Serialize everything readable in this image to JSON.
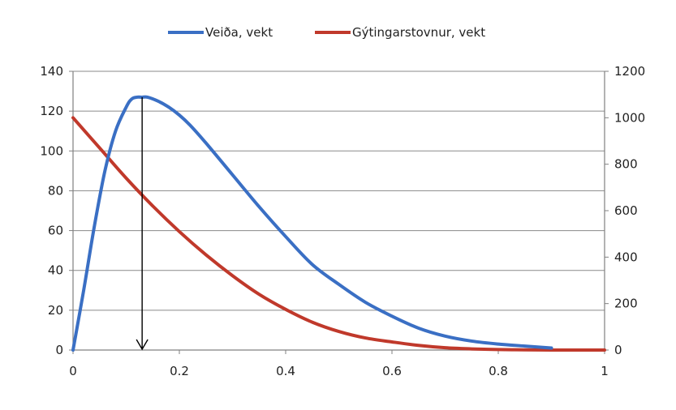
{
  "chart_data": {
    "type": "line",
    "title": "",
    "xlabel": "",
    "ylabel": "",
    "y2label": "",
    "xlim": [
      0,
      1
    ],
    "ylim": [
      0,
      140
    ],
    "y2lim": [
      0,
      1200
    ],
    "x_ticks": [
      "0",
      "0.2",
      "0.4",
      "0.6",
      "0.8",
      "1"
    ],
    "y_ticks": [
      "0",
      "20",
      "40",
      "60",
      "80",
      "100",
      "120",
      "140"
    ],
    "y2_ticks": [
      "0",
      "200",
      "400",
      "600",
      "800",
      "1000",
      "1200"
    ],
    "grid": true,
    "legend_position": "top",
    "series": [
      {
        "name": "Veiða, vekt",
        "axis": "left",
        "color": "#3a6fc4",
        "x": [
          0,
          0.02,
          0.04,
          0.06,
          0.08,
          0.1,
          0.11,
          0.12,
          0.13,
          0.14,
          0.16,
          0.18,
          0.2,
          0.22,
          0.25,
          0.3,
          0.35,
          0.4,
          0.45,
          0.5,
          0.55,
          0.6,
          0.65,
          0.7,
          0.75,
          0.8,
          0.85,
          0.9
        ],
        "y": [
          0,
          30,
          62,
          90,
          110,
          122,
          126,
          127,
          127,
          127,
          125,
          122,
          118,
          113,
          104,
          88,
          72,
          57,
          43,
          33,
          24,
          17,
          11,
          7,
          4.5,
          3,
          2,
          1
        ]
      },
      {
        "name": "Gýtingarstovnur, vekt",
        "axis": "right",
        "color": "#c0392b",
        "x": [
          0,
          0.05,
          0.1,
          0.15,
          0.2,
          0.25,
          0.3,
          0.35,
          0.4,
          0.45,
          0.5,
          0.55,
          0.6,
          0.65,
          0.7,
          0.75,
          0.8,
          0.85,
          0.9,
          0.95,
          1.0
        ],
        "y": [
          1000,
          870,
          740,
          620,
          510,
          410,
          320,
          240,
          175,
          120,
          80,
          52,
          35,
          20,
          10,
          5,
          2,
          1,
          0,
          0,
          0
        ]
      }
    ],
    "annotations": [
      {
        "type": "arrow",
        "x": 0.13,
        "y_from": 127,
        "y_to": 0,
        "axis": "left"
      }
    ]
  }
}
